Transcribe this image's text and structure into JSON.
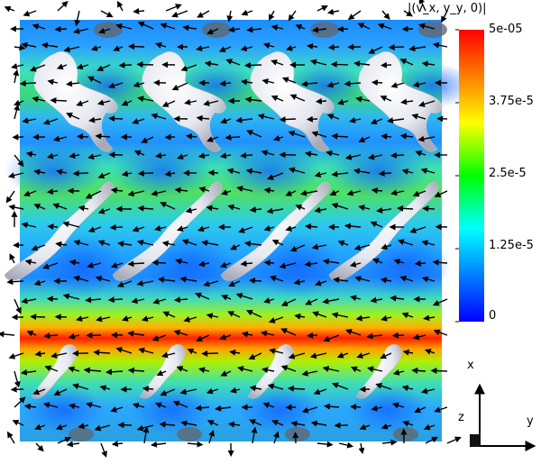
{
  "legend": {
    "title": "|(v_x, v_y, 0)|",
    "ticks": [
      "5e-05",
      "3.75e-5",
      "2.5e-5",
      "1.25e-5",
      "0"
    ],
    "max_value": 5e-05,
    "min_value": 0,
    "colors": [
      "#0000ff",
      "#00a0ff",
      "#00ffff",
      "#00ff00",
      "#ffff00",
      "#ff8000",
      "#ff0000"
    ]
  },
  "axes": {
    "x_label": "x",
    "y_label": "y",
    "z_label": "z"
  }
}
